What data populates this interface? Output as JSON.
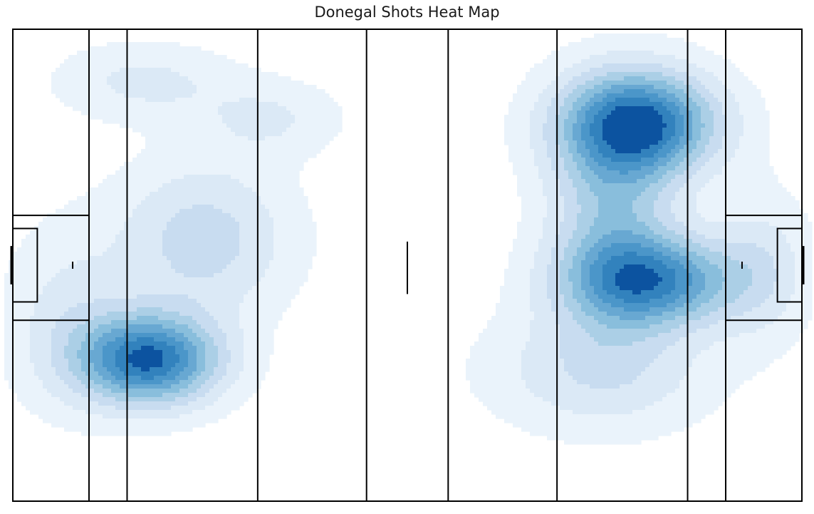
{
  "chart_data": {
    "type": "heatmap",
    "title": "Donegal Shots Heat Map",
    "xlabel": "",
    "ylabel": "",
    "grid": false,
    "legend": "none",
    "colormap": "Blues",
    "levels": 9,
    "pitch": {
      "length_m": 145,
      "width_m": 90,
      "line_marks_m": [
        14,
        21,
        45,
        65,
        80,
        100,
        124,
        131
      ],
      "large_rect_m": {
        "depth": 14,
        "y_range": [
          35.5,
          55.5
        ]
      },
      "small_rect_m": {
        "depth": 4.5,
        "y_range": [
          38,
          52
        ]
      },
      "goal_m": {
        "y_range": [
          41.75,
          48.25
        ]
      },
      "penalty_spot_m": 11,
      "halfway_mark_m": {
        "y_range": [
          40.5,
          50.5
        ]
      }
    },
    "shot_clusters": [
      {
        "x": 25,
        "y": 63,
        "peak": 1.0,
        "spread_x": 9,
        "spread_y": 6
      },
      {
        "x": 115,
        "y": 18,
        "peak": 1.0,
        "spread_x": 10,
        "spread_y": 7
      },
      {
        "x": 118,
        "y": 48,
        "peak": 0.8,
        "spread_x": 11,
        "spread_y": 6
      },
      {
        "x": 110,
        "y": 36,
        "peak": 0.45,
        "spread_x": 8,
        "spread_y": 14
      },
      {
        "x": 35,
        "y": 40,
        "peak": 0.35,
        "spread_x": 11,
        "spread_y": 10
      },
      {
        "x": 24,
        "y": 10,
        "peak": 0.2,
        "spread_x": 11,
        "spread_y": 5
      },
      {
        "x": 47,
        "y": 17,
        "peak": 0.18,
        "spread_x": 9,
        "spread_y": 5
      },
      {
        "x": 108,
        "y": 65,
        "peak": 0.28,
        "spread_x": 14,
        "spread_y": 8
      },
      {
        "x": 10,
        "y": 55,
        "peak": 0.2,
        "spread_x": 8,
        "spread_y": 12
      },
      {
        "x": 138,
        "y": 45,
        "peak": 0.2,
        "spread_x": 6,
        "spread_y": 10
      }
    ],
    "colors": {
      "levels": [
        "#eaf3fb",
        "#dbe9f6",
        "#c8dcf0",
        "#abcfe6",
        "#89bedc",
        "#68a8d2",
        "#4b96c9",
        "#3282bd",
        "#0c53a0"
      ],
      "pitch_lines": "#000000"
    }
  }
}
